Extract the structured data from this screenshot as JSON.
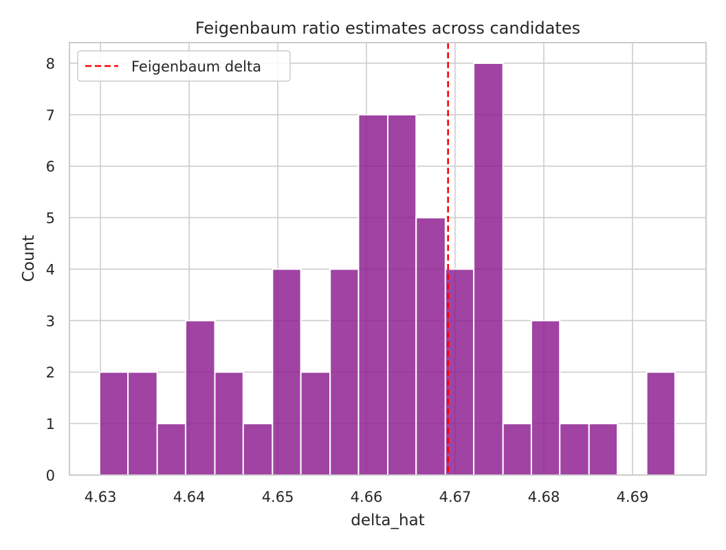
{
  "chart_data": {
    "type": "bar",
    "title": "Feigenbaum ratio estimates across candidates",
    "xlabel": "delta_hat",
    "ylabel": "Count",
    "xlim": [
      4.6265,
      4.6983
    ],
    "ylim": [
      0,
      8.4
    ],
    "xticks": [
      "4.63",
      "4.64",
      "4.65",
      "4.66",
      "4.67",
      "4.68",
      "4.69"
    ],
    "yticks": [
      "0",
      "1",
      "2",
      "3",
      "4",
      "5",
      "6",
      "7",
      "8"
    ],
    "bin_edges": [
      4.6299,
      4.6331,
      4.6364,
      4.6396,
      4.6429,
      4.6461,
      4.6494,
      4.6526,
      4.6559,
      4.6591,
      4.6624,
      4.6656,
      4.6689,
      4.6721,
      4.6754,
      4.6786,
      4.6818,
      4.6851,
      4.6883,
      4.6916,
      4.6948
    ],
    "counts": [
      2,
      2,
      1,
      3,
      2,
      1,
      4,
      2,
      4,
      7,
      7,
      5,
      4,
      8,
      1,
      3,
      1,
      1,
      0,
      2
    ],
    "bar_color": "#8B1A8F",
    "grid": true,
    "reference_line": {
      "x": 4.6692,
      "label": "Feigenbaum delta",
      "color": "#ff0000",
      "style": "dashed"
    },
    "legend_position": "top-left"
  }
}
